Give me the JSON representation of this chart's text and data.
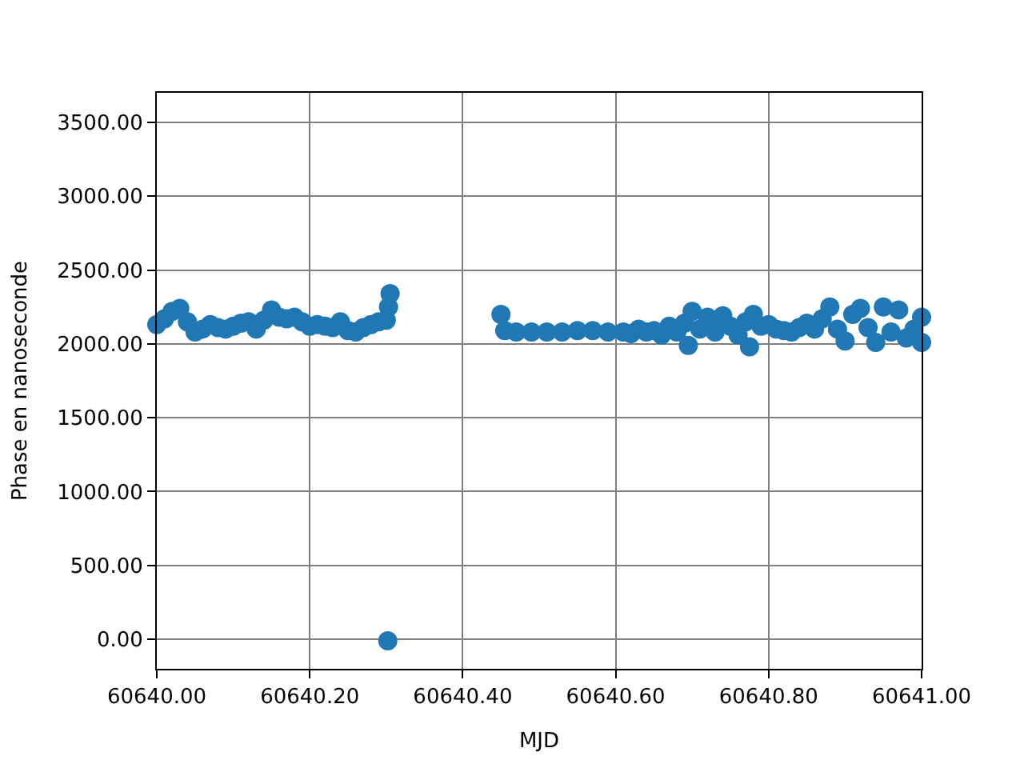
{
  "chart_data": {
    "type": "scatter",
    "xlabel": "MJD",
    "ylabel": "Phase en nanoseconde",
    "xlim": [
      60640.0,
      60641.0
    ],
    "xticks": [
      {
        "value": 60640.0,
        "label": "60640.00"
      },
      {
        "value": 60640.2,
        "label": "60640.20"
      },
      {
        "value": 60640.4,
        "label": "60640.40"
      },
      {
        "value": 60640.6,
        "label": "60640.60"
      },
      {
        "value": 60640.8,
        "label": "60640.80"
      },
      {
        "value": 60641.0,
        "label": "60641.00"
      }
    ],
    "ylim": [
      -200,
      3700
    ],
    "yticks": [
      {
        "value": 0,
        "label": "0.00"
      },
      {
        "value": 500,
        "label": "500.00"
      },
      {
        "value": 1000,
        "label": "1000.00"
      },
      {
        "value": 1500,
        "label": "1500.00"
      },
      {
        "value": 2000,
        "label": "2000.00"
      },
      {
        "value": 2500,
        "label": "2500.00"
      },
      {
        "value": 3000,
        "label": "3000.00"
      },
      {
        "value": 3500,
        "label": "3500.00"
      }
    ],
    "grid": true,
    "marker": "circle",
    "legend": false,
    "series": [
      {
        "color": "#1f77b4",
        "x": [
          60640.0,
          60640.01,
          60640.02,
          60640.03,
          60640.04,
          60640.05,
          60640.06,
          60640.07,
          60640.08,
          60640.09,
          60640.1,
          60640.11,
          60640.12,
          60640.13,
          60640.14,
          60640.15,
          60640.16,
          60640.17,
          60640.18,
          60640.19,
          60640.2,
          60640.21,
          60640.22,
          60640.23,
          60640.24,
          60640.25,
          60640.26,
          60640.27,
          60640.28,
          60640.29,
          60640.3,
          60640.302,
          60640.303,
          60640.305,
          60640.45,
          60640.455,
          60640.47,
          60640.49,
          60640.51,
          60640.53,
          60640.55,
          60640.57,
          60640.59,
          60640.61,
          60640.62,
          60640.63,
          60640.64,
          60640.65,
          60640.66,
          60640.67,
          60640.68,
          60640.69,
          60640.695,
          60640.7,
          60640.71,
          60640.72,
          60640.73,
          60640.74,
          60640.75,
          60640.76,
          60640.77,
          60640.775,
          60640.78,
          60640.79,
          60640.8,
          60640.81,
          60640.82,
          60640.83,
          60640.84,
          60640.85,
          60640.86,
          60640.87,
          60640.88,
          60640.89,
          60640.9,
          60640.91,
          60640.92,
          60640.93,
          60640.94,
          60640.95,
          60640.96,
          60640.97,
          60640.98,
          60640.99,
          60641.0,
          60641.0
        ],
        "values": [
          2130,
          2170,
          2220,
          2240,
          2150,
          2080,
          2100,
          2130,
          2110,
          2100,
          2120,
          2140,
          2150,
          2100,
          2160,
          2230,
          2180,
          2170,
          2180,
          2150,
          2120,
          2130,
          2120,
          2110,
          2150,
          2090,
          2080,
          2110,
          2130,
          2150,
          2160,
          -10,
          2250,
          2340,
          2200,
          2090,
          2080,
          2080,
          2080,
          2080,
          2090,
          2090,
          2080,
          2080,
          2070,
          2100,
          2080,
          2090,
          2060,
          2120,
          2080,
          2140,
          1990,
          2220,
          2100,
          2180,
          2080,
          2190,
          2120,
          2060,
          2150,
          1980,
          2200,
          2120,
          2130,
          2100,
          2090,
          2080,
          2110,
          2140,
          2100,
          2170,
          2250,
          2100,
          2020,
          2200,
          2240,
          2110,
          2010,
          2250,
          2080,
          2230,
          2040,
          2100,
          2180,
          2010
        ]
      }
    ]
  }
}
